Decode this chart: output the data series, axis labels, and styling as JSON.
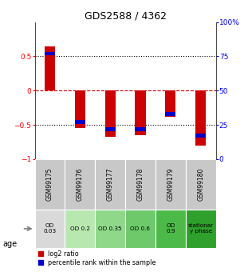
{
  "title": "GDS2588 / 4362",
  "samples": [
    "GSM99175",
    "GSM99176",
    "GSM99177",
    "GSM99178",
    "GSM99179",
    "GSM99180"
  ],
  "log2_ratio": [
    0.65,
    -0.55,
    -0.68,
    -0.65,
    -0.38,
    -0.8
  ],
  "percentile_rank": [
    0.77,
    0.27,
    0.22,
    0.22,
    0.33,
    0.17
  ],
  "age_labels": [
    "OD\n0.03",
    "OD 0.2",
    "OD 0.35",
    "OD 0.6",
    "OD\n0.9",
    "stationar\ny phase"
  ],
  "age_colors": [
    "#d9d9d9",
    "#b8e8b0",
    "#8fd88a",
    "#6dc96a",
    "#4cba48",
    "#2fa02b"
  ],
  "sample_bg_color": "#c8c8c8",
  "bar_width": 0.35,
  "bar_color_red": "#cc0000",
  "bar_color_blue": "#0000cc",
  "legend_red": "log2 ratio",
  "legend_blue": "percentile rank within the sample",
  "figsize": [
    3.11,
    3.45
  ],
  "dpi": 100
}
